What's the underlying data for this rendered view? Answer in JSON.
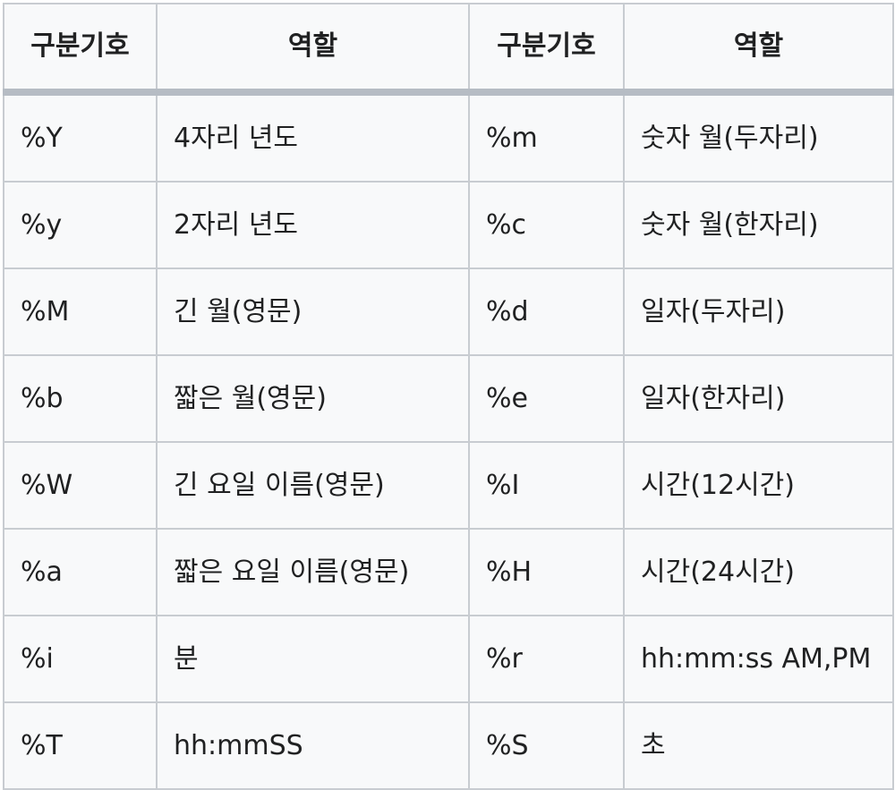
{
  "table": {
    "headers": [
      "구분기호",
      "역할",
      "구분기호",
      "역할"
    ],
    "rows": [
      [
        "%Y",
        "4자리 년도",
        "%m",
        "숫자 월(두자리)"
      ],
      [
        "%y",
        "2자리 년도",
        "%c",
        "숫자 월(한자리)"
      ],
      [
        "%M",
        "긴 월(영문)",
        "%d",
        "일자(두자리)"
      ],
      [
        "%b",
        "짧은 월(영문)",
        "%e",
        "일자(한자리)"
      ],
      [
        "%W",
        "긴 요일 이름(영문)",
        "%I",
        "시간(12시간)"
      ],
      [
        "%a",
        "짧은 요일 이름(영문)",
        "%H",
        "시간(24시간)"
      ],
      [
        "%i",
        "분",
        "%r",
        "hh:mm:ss AM,PM"
      ],
      [
        "%T",
        "hh:mmSS",
        "%S",
        "초"
      ]
    ]
  }
}
